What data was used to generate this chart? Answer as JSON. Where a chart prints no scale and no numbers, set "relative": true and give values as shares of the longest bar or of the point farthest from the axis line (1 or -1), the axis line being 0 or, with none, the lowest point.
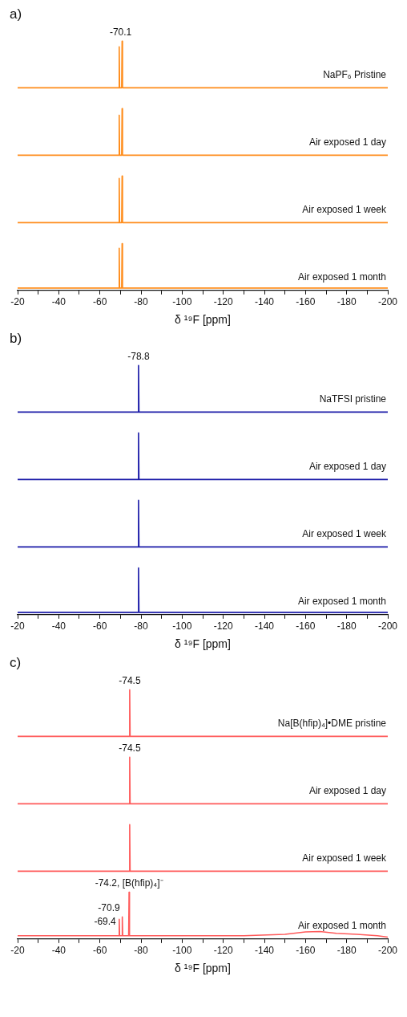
{
  "chart_data": [
    {
      "type": "line",
      "title": "a)",
      "x": [
        -20,
        -69.2,
        -69.4,
        -69.6,
        -70.6,
        -70.8,
        -71.0,
        -200
      ],
      "series": [
        {
          "name": "NaPF₆ Pristine",
          "color": "#ff8c1a",
          "values": [
            0,
            0,
            0.88,
            0,
            0,
            1,
            0,
            0
          ]
        }
      ],
      "relative": true,
      "xlim": [
        -20,
        -200
      ],
      "tick_labels": false,
      "annotations": [
        {
          "text": "-70.1",
          "x": -70.1,
          "y": 1
        }
      ]
    },
    {
      "type": "line",
      "x": [
        -20,
        -69.2,
        -69.4,
        -69.6,
        -70.6,
        -70.8,
        -71.0,
        -200
      ],
      "series": [
        {
          "name": "Air exposed 1 day",
          "color": "#ff8c1a",
          "values": [
            0,
            0,
            0.86,
            0,
            0,
            1,
            0,
            0
          ]
        }
      ],
      "relative": true,
      "xlim": [
        -20,
        -200
      ],
      "tick_labels": false
    },
    {
      "type": "line",
      "x": [
        -20,
        -69.2,
        -69.4,
        -69.6,
        -70.6,
        -70.8,
        -71.0,
        -200
      ],
      "series": [
        {
          "name": "Air exposed 1 week",
          "color": "#ff8c1a",
          "values": [
            0,
            0,
            0.95,
            0,
            0,
            1,
            0,
            0
          ]
        }
      ],
      "relative": true,
      "xlim": [
        -20,
        -200
      ],
      "tick_labels": false
    },
    {
      "type": "line",
      "x": [
        -20,
        -69.2,
        -69.4,
        -69.6,
        -70.6,
        -70.8,
        -71.0,
        -200
      ],
      "series": [
        {
          "name": "Air exposed 1 month",
          "color": "#ff8c1a",
          "values": [
            0.05,
            0.05,
            0.9,
            0.05,
            0.05,
            1,
            0.05,
            0.05
          ]
        }
      ],
      "relative": true,
      "xlim": [
        -20,
        -200
      ],
      "xticks": [
        -20,
        {
          "value": -30,
          "label": null
        },
        -40,
        {
          "value": -50,
          "label": null
        },
        -60,
        {
          "value": -70,
          "label": null
        },
        -80,
        {
          "value": -90,
          "label": null
        },
        -100,
        {
          "value": -110,
          "label": null
        },
        -120,
        {
          "value": -130,
          "label": null
        },
        -140,
        {
          "value": -150,
          "label": null
        },
        -160,
        {
          "value": -170,
          "label": null
        },
        -180,
        {
          "value": -190,
          "label": null
        },
        -200
      ],
      "tick_labels": "x",
      "xlabel": "δ ¹⁹F [ppm]"
    },
    {
      "type": "line",
      "title": "b)",
      "x": [
        -20,
        -78.6,
        -78.8,
        -79.0,
        -200
      ],
      "series": [
        {
          "name": "NaTFSI pristine",
          "color": "#1a1aa8",
          "values": [
            0,
            0,
            1,
            0,
            0
          ]
        }
      ],
      "relative": true,
      "xlim": [
        -20,
        -200
      ],
      "tick_labels": false,
      "annotations": [
        {
          "text": "-78.8",
          "x": -78.8,
          "y": 1
        }
      ]
    },
    {
      "type": "line",
      "x": [
        -20,
        -78.6,
        -78.8,
        -79.0,
        -200
      ],
      "series": [
        {
          "name": "Air exposed 1 day",
          "color": "#1a1aa8",
          "values": [
            0,
            0,
            1,
            0,
            0
          ]
        }
      ],
      "relative": true,
      "xlim": [
        -20,
        -200
      ],
      "tick_labels": false
    },
    {
      "type": "line",
      "x": [
        -20,
        -78.6,
        -78.8,
        -79.0,
        -200
      ],
      "series": [
        {
          "name": "Air exposed 1 week",
          "color": "#1a1aa8",
          "values": [
            0,
            0,
            1,
            0,
            0
          ]
        }
      ],
      "relative": true,
      "xlim": [
        -20,
        -200
      ],
      "tick_labels": false
    },
    {
      "type": "line",
      "x": [
        -20,
        -78.6,
        -78.8,
        -79.0,
        -200
      ],
      "series": [
        {
          "name": "Air exposed 1 month",
          "color": "#1a1aa8",
          "values": [
            0.05,
            0.05,
            1,
            0.05,
            0.05
          ]
        }
      ],
      "relative": true,
      "xlim": [
        -20,
        -200
      ],
      "xticks": [
        -20,
        {
          "value": -30,
          "label": null
        },
        -40,
        {
          "value": -50,
          "label": null
        },
        -60,
        {
          "value": -70,
          "label": null
        },
        -80,
        {
          "value": -90,
          "label": null
        },
        -100,
        {
          "value": -110,
          "label": null
        },
        -120,
        {
          "value": -130,
          "label": null
        },
        -140,
        {
          "value": -150,
          "label": null
        },
        -160,
        {
          "value": -170,
          "label": null
        },
        -180,
        {
          "value": -190,
          "label": null
        },
        -200
      ],
      "tick_labels": "x",
      "xlabel": "δ ¹⁹F [ppm]"
    },
    {
      "type": "line",
      "title": "c)",
      "x": [
        -20,
        -74.3,
        -74.5,
        -74.7,
        -200
      ],
      "series": [
        {
          "name": "Na[B(hfip)₄]•DME pristine",
          "color": "#ff5a5a",
          "values": [
            0,
            0,
            1,
            0,
            0
          ]
        }
      ],
      "relative": true,
      "xlim": [
        -20,
        -200
      ],
      "tick_labels": false,
      "annotations": [
        {
          "text": "-74.5",
          "x": -74.5,
          "y": 1
        }
      ]
    },
    {
      "type": "line",
      "x": [
        -20,
        -74.3,
        -74.5,
        -74.7,
        -200
      ],
      "series": [
        {
          "name": "Air exposed 1 day",
          "color": "#ff5a5a",
          "values": [
            0,
            0,
            1,
            0,
            0
          ]
        }
      ],
      "relative": true,
      "xlim": [
        -20,
        -200
      ],
      "tick_labels": false,
      "annotations": [
        {
          "text": "-74.5",
          "x": -74.5,
          "y": 1
        }
      ]
    },
    {
      "type": "line",
      "x": [
        -20,
        -74.3,
        -74.5,
        -74.7,
        -200
      ],
      "series": [
        {
          "name": "Air exposed 1 week",
          "color": "#ff5a5a",
          "values": [
            0,
            0,
            1,
            0,
            0
          ]
        }
      ],
      "relative": true,
      "xlim": [
        -20,
        -200
      ],
      "tick_labels": false
    },
    {
      "type": "line",
      "x": [
        -20,
        -40,
        -60,
        -69.2,
        -69.4,
        -69.6,
        -70.7,
        -70.9,
        -71.1,
        -74.0,
        -74.2,
        -74.4,
        -100,
        -130,
        -150,
        -160,
        -167,
        -175,
        -185,
        -195,
        -200
      ],
      "series": [
        {
          "name": "Air exposed 1 month",
          "color": "#ff5a5a",
          "values": [
            0.07,
            0.07,
            0.07,
            0.07,
            0.42,
            0.07,
            0.07,
            0.47,
            0.07,
            0.07,
            1,
            0.07,
            0.07,
            0.07,
            0.1,
            0.15,
            0.16,
            0.12,
            0.1,
            0.07,
            0.04
          ]
        }
      ],
      "relative": true,
      "xlim": [
        -20,
        -200
      ],
      "xticks": [
        -20,
        {
          "value": -30,
          "label": null
        },
        -40,
        {
          "value": -50,
          "label": null
        },
        -60,
        {
          "value": -70,
          "label": null
        },
        -80,
        {
          "value": -90,
          "label": null
        },
        -100,
        {
          "value": -110,
          "label": null
        },
        -120,
        {
          "value": -130,
          "label": null
        },
        -140,
        {
          "value": -150,
          "label": null
        },
        -160,
        {
          "value": -170,
          "label": null
        },
        -180,
        {
          "value": -190,
          "label": null
        },
        -200
      ],
      "tick_labels": "x",
      "xlabel": "δ ¹⁹F [ppm]",
      "annotations": [
        {
          "text": "-74.2, [B(hfip)₄]⁻",
          "x": -74.2,
          "y": 1
        },
        {
          "text": "-70.9",
          "x": -70.9,
          "y": 0.47
        },
        {
          "text": "-69.4",
          "x": -69.4,
          "y": 0.42
        }
      ]
    }
  ]
}
